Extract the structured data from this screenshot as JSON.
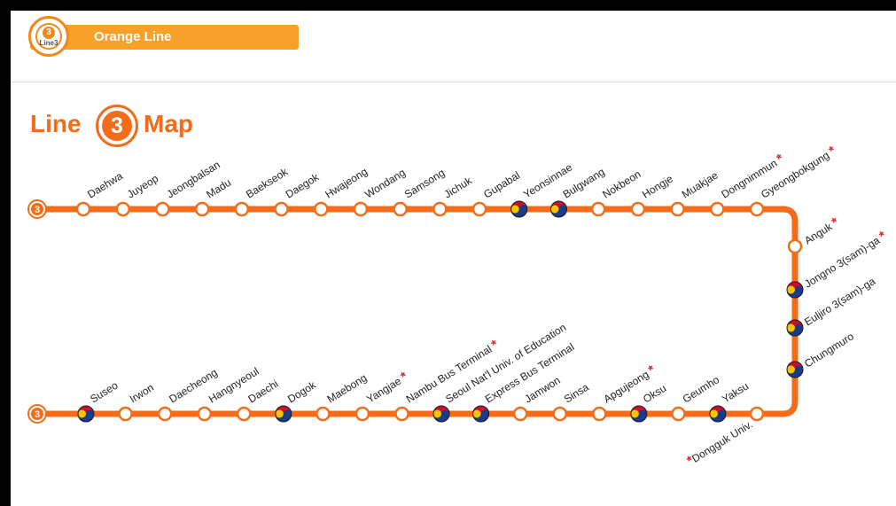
{
  "header": {
    "badge_number": "3",
    "badge_caption": "Line3",
    "tab_label": "Orange Line"
  },
  "title": {
    "word1": "Line",
    "number": "3",
    "word2": "Map"
  },
  "line": {
    "color": "#f26c1a",
    "end_marker": "3",
    "transfer_icon": "taeguk-transfer-icon"
  },
  "top_row": [
    {
      "name": "Daehwa",
      "transfer": false,
      "star": false
    },
    {
      "name": "Juyeop",
      "transfer": false,
      "star": false
    },
    {
      "name": "Jeongbalsan",
      "transfer": false,
      "star": false
    },
    {
      "name": "Madu",
      "transfer": false,
      "star": false
    },
    {
      "name": "Baekseok",
      "transfer": false,
      "star": false
    },
    {
      "name": "Daegok",
      "transfer": false,
      "star": false
    },
    {
      "name": "Hwajeong",
      "transfer": false,
      "star": false
    },
    {
      "name": "Wondang",
      "transfer": false,
      "star": false
    },
    {
      "name": "Samsong",
      "transfer": false,
      "star": false
    },
    {
      "name": "Jichuk",
      "transfer": false,
      "star": false
    },
    {
      "name": "Gupabal",
      "transfer": false,
      "star": false
    },
    {
      "name": "Yeonsinnae",
      "transfer": true,
      "star": false
    },
    {
      "name": "Bulgwang",
      "transfer": true,
      "star": false
    },
    {
      "name": "Nokbeon",
      "transfer": false,
      "star": false
    },
    {
      "name": "Hongje",
      "transfer": false,
      "star": false
    },
    {
      "name": "Muakjae",
      "transfer": false,
      "star": false
    },
    {
      "name": "Dongnimmun",
      "transfer": false,
      "star": true
    },
    {
      "name": "Gyeongbokgung",
      "transfer": false,
      "star": true
    }
  ],
  "right_column": [
    {
      "name": "Anguk",
      "transfer": false,
      "star": true
    },
    {
      "name": "Jongno 3(sam)-ga",
      "transfer": true,
      "star": true
    },
    {
      "name": "Euljiro 3(sam)-ga",
      "transfer": true,
      "star": false
    },
    {
      "name": "Chungmuro",
      "transfer": true,
      "star": false
    }
  ],
  "bottom_row": [
    {
      "name": "Suseo",
      "transfer": true,
      "star": false
    },
    {
      "name": "Irwon",
      "transfer": false,
      "star": false
    },
    {
      "name": "Daecheong",
      "transfer": false,
      "star": false
    },
    {
      "name": "Hangnyeoul",
      "transfer": false,
      "star": false
    },
    {
      "name": "Daechi",
      "transfer": false,
      "star": false
    },
    {
      "name": "Dogok",
      "transfer": true,
      "star": false
    },
    {
      "name": "Maebong",
      "transfer": false,
      "star": false
    },
    {
      "name": "Yangjae",
      "transfer": false,
      "star": true
    },
    {
      "name": "Nambu Bus Terminal",
      "transfer": false,
      "star": true
    },
    {
      "name": "Seoul Nat'l Univ. of Education",
      "transfer": true,
      "star": false
    },
    {
      "name": "Express Bus Terminal",
      "transfer": true,
      "star": false
    },
    {
      "name": "Jamwon",
      "transfer": false,
      "star": false
    },
    {
      "name": "Sinsa",
      "transfer": false,
      "star": false
    },
    {
      "name": "Apgujeong",
      "transfer": false,
      "star": true
    },
    {
      "name": "Oksu",
      "transfer": true,
      "star": false
    },
    {
      "name": "Geumho",
      "transfer": false,
      "star": false
    },
    {
      "name": "Yaksu",
      "transfer": true,
      "star": false
    }
  ],
  "bottom_corner": {
    "name": "Dongguk Univ.",
    "transfer": false,
    "star": true
  },
  "star_mark": "*"
}
